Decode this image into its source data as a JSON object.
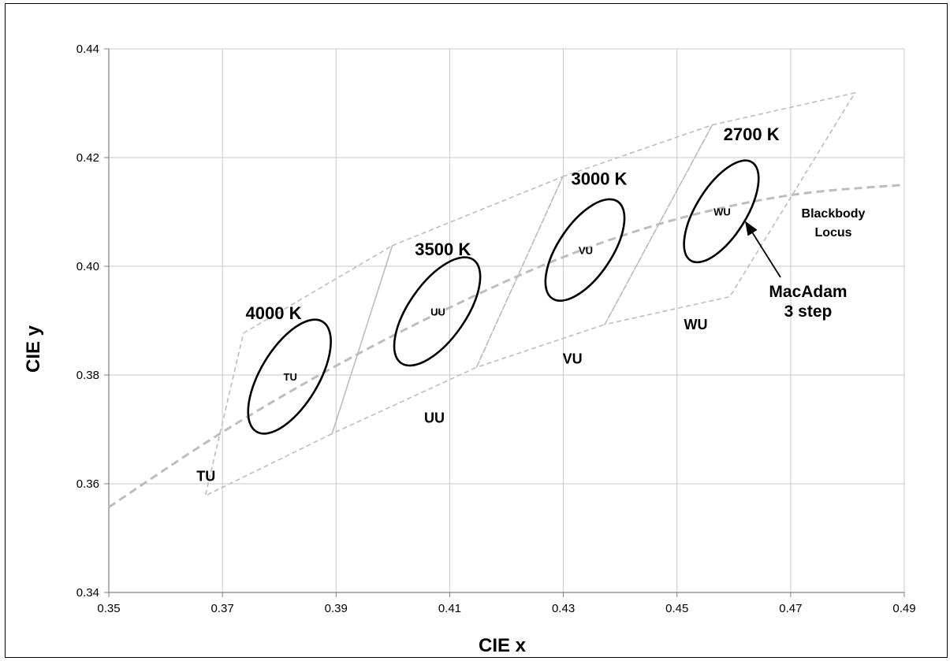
{
  "chart_data": {
    "type": "scatter",
    "xlabel": "CIE x",
    "ylabel": "CIE y",
    "xlim": [
      0.35,
      0.49
    ],
    "ylim": [
      0.34,
      0.44
    ],
    "xticks": [
      "0.35",
      "0.37",
      "0.39",
      "0.41",
      "0.43",
      "0.45",
      "0.47",
      "0.49"
    ],
    "yticks": [
      "0.34",
      "0.36",
      "0.38",
      "0.40",
      "0.42",
      "0.44"
    ],
    "grid": true,
    "blackbody_locus": {
      "label_line1": "Blackbody",
      "label_line2": "Locus",
      "points": [
        [
          0.35,
          0.3557
        ],
        [
          0.37,
          0.3695
        ],
        [
          0.39,
          0.3817
        ],
        [
          0.41,
          0.3924
        ],
        [
          0.43,
          0.4017
        ],
        [
          0.45,
          0.4087
        ],
        [
          0.47,
          0.4131
        ],
        [
          0.49,
          0.415
        ]
      ]
    },
    "bins": [
      {
        "name": "TU",
        "cct_label": "4000 K",
        "ellipse_label": "TU",
        "polygon": [
          [
            0.3737,
            0.3877
          ],
          [
            0.3999,
            0.4038
          ],
          [
            0.3893,
            0.3692
          ],
          [
            0.367,
            0.3578
          ]
        ]
      },
      {
        "name": "UU",
        "cct_label": "3500 K",
        "ellipse_label": "UU",
        "polygon": [
          [
            0.3999,
            0.4038
          ],
          [
            0.4299,
            0.4165
          ],
          [
            0.4147,
            0.3814
          ],
          [
            0.3893,
            0.3692
          ]
        ]
      },
      {
        "name": "VU",
        "cct_label": "3000 K",
        "ellipse_label": "VU",
        "polygon": [
          [
            0.4299,
            0.4165
          ],
          [
            0.4562,
            0.426
          ],
          [
            0.4373,
            0.3893
          ],
          [
            0.4147,
            0.3814
          ]
        ]
      },
      {
        "name": "WU",
        "cct_label": "2700 K",
        "ellipse_label": "WU",
        "polygon": [
          [
            0.4562,
            0.426
          ],
          [
            0.4813,
            0.4319
          ],
          [
            0.4593,
            0.3944
          ],
          [
            0.4373,
            0.3893
          ]
        ]
      }
    ],
    "macadam_ellipses": [
      {
        "center": [
          0.3818,
          0.3797
        ],
        "a": 0.0113,
        "b": 0.0051,
        "angle_deg": 59
      },
      {
        "center": [
          0.4078,
          0.3917
        ],
        "a": 0.0111,
        "b": 0.005,
        "angle_deg": 55
      },
      {
        "center": [
          0.4338,
          0.403
        ],
        "a": 0.0103,
        "b": 0.0047,
        "angle_deg": 56
      },
      {
        "center": [
          0.4578,
          0.4101
        ],
        "a": 0.0102,
        "b": 0.0044,
        "angle_deg": 58
      }
    ],
    "annotation": {
      "line1": "MacAdam",
      "line2": "3 step"
    }
  }
}
